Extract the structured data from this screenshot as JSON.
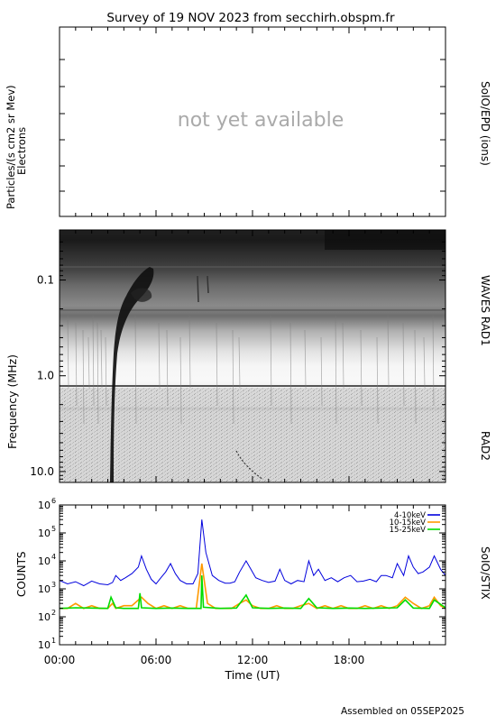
{
  "title": "Survey of 19 NOV 2023 from secchirh.obspm.fr",
  "footer": "Assembled on 05SEP2025",
  "colors": {
    "frame": "#000000",
    "placeholder": "#aaaaaa",
    "series_blue": "#0000dd",
    "series_orange": "#ff9900",
    "series_green": "#00dd00"
  },
  "chart_data": [
    {
      "type": "line",
      "panel": "SoIO/EPD (ions)",
      "ylabel": "Particles/(s cm2 sr Mev)",
      "ylabel2": "Electrons",
      "right_label": "SoIO/EPD (ions)",
      "status": "not yet available",
      "series": []
    },
    {
      "type": "heatmap",
      "panel": "WAVES RAD1 / RAD2",
      "ylabel": "Frequency (MHz)",
      "y_scale": "log",
      "y_inverted": true,
      "ylim": [
        0.03,
        13
      ],
      "yticks": [
        0.1,
        1.0,
        10.0
      ],
      "ytick_labels": [
        "0.1",
        "1.0",
        "10.0"
      ],
      "right_labels": [
        "WAVES RAD1",
        "RAD2"
      ],
      "xlim_hours": [
        0,
        24
      ],
      "features": [
        {
          "type": "type-III burst",
          "time_hours": 3.1,
          "freq_start_mhz": 0.07,
          "freq_end_mhz": 12.0
        },
        {
          "type": "type-III burst",
          "time_hours": 9.1,
          "freq_start_mhz": 0.09,
          "freq_end_mhz": 0.2
        }
      ]
    },
    {
      "type": "line",
      "panel": "SoIO/STIX",
      "ylabel": "COUNTS",
      "right_label": "SoIO/STIX",
      "y_scale": "log",
      "ylim": [
        10,
        1000000
      ],
      "ytick_labels": [
        {
          "base": "10",
          "exp": "1"
        },
        {
          "base": "10",
          "exp": "2"
        },
        {
          "base": "10",
          "exp": "3"
        },
        {
          "base": "10",
          "exp": "4"
        },
        {
          "base": "10",
          "exp": "5"
        },
        {
          "base": "10",
          "exp": "6"
        }
      ],
      "xlabel": "Time (UT)",
      "xlim": [
        0,
        24
      ],
      "xticks": [
        "00:00",
        "06:00",
        "12:00",
        "18:00"
      ],
      "legend_position": "top-right",
      "series": [
        {
          "name": "4-10keV",
          "color": "#0000dd",
          "x": [
            0,
            0.5,
            1.0,
            1.5,
            2.0,
            2.5,
            3.0,
            3.3,
            3.5,
            3.8,
            4.1,
            4.5,
            4.9,
            5.1,
            5.4,
            5.7,
            6.0,
            6.3,
            6.6,
            6.9,
            7.2,
            7.5,
            7.9,
            8.3,
            8.6,
            8.85,
            9.1,
            9.5,
            9.9,
            10.3,
            10.6,
            10.9,
            11.2,
            11.6,
            11.9,
            12.2,
            12.6,
            13.0,
            13.4,
            13.7,
            14.0,
            14.4,
            14.8,
            15.2,
            15.5,
            15.8,
            16.1,
            16.5,
            16.9,
            17.3,
            17.7,
            18.1,
            18.5,
            18.9,
            19.3,
            19.7,
            20.0,
            20.3,
            20.7,
            21.0,
            21.4,
            21.7,
            22.0,
            22.3,
            22.6,
            23.0,
            23.3,
            23.7,
            24.0
          ],
          "values": [
            2000,
            1500,
            1800,
            1300,
            1900,
            1500,
            1400,
            1700,
            3000,
            2000,
            2500,
            3500,
            6000,
            15000,
            5000,
            2200,
            1500,
            2500,
            4000,
            8000,
            3500,
            2000,
            1500,
            1500,
            3500,
            300000,
            20000,
            3000,
            2000,
            1600,
            1600,
            1800,
            4000,
            10000,
            5000,
            2500,
            2000,
            1700,
            1900,
            5000,
            2000,
            1500,
            2000,
            1800,
            10000,
            3000,
            5000,
            2000,
            2500,
            1800,
            2500,
            3000,
            1800,
            1900,
            2200,
            1800,
            3000,
            3000,
            2500,
            8000,
            3000,
            15000,
            6000,
            3500,
            4000,
            6000,
            15000,
            5000,
            3000
          ]
        },
        {
          "name": "10-15keV",
          "color": "#ff9900",
          "x": [
            0,
            0.5,
            1.0,
            1.5,
            2.0,
            2.5,
            3.0,
            3.3,
            3.5,
            4.0,
            4.5,
            4.9,
            5.1,
            5.5,
            6.0,
            6.5,
            7.0,
            7.5,
            8.0,
            8.5,
            8.85,
            9.2,
            9.7,
            10.2,
            10.7,
            11.2,
            11.6,
            12.0,
            12.5,
            13.0,
            13.5,
            14.0,
            14.5,
            15.0,
            15.5,
            16.0,
            16.5,
            17.0,
            17.5,
            18.0,
            18.5,
            19.0,
            19.5,
            20.0,
            20.5,
            21.0,
            21.5,
            22.0,
            22.5,
            23.0,
            23.3,
            23.7,
            24.0
          ],
          "values": [
            200,
            200,
            300,
            200,
            250,
            200,
            200,
            300,
            200,
            250,
            250,
            400,
            500,
            300,
            200,
            250,
            200,
            250,
            200,
            200,
            8000,
            300,
            200,
            200,
            200,
            300,
            400,
            250,
            200,
            200,
            250,
            200,
            200,
            250,
            300,
            200,
            250,
            200,
            250,
            200,
            200,
            250,
            200,
            250,
            200,
            250,
            500,
            300,
            200,
            250,
            500,
            250,
            200
          ]
        },
        {
          "name": "15-25keV",
          "color": "#00dd00",
          "x": [
            0,
            1.0,
            2.0,
            3.0,
            3.2,
            3.5,
            4.0,
            4.9,
            5.0,
            5.1,
            6.0,
            7.0,
            8.0,
            8.8,
            8.85,
            8.95,
            10.0,
            11.0,
            11.6,
            12.0,
            13.0,
            14.0,
            15.0,
            15.5,
            16.0,
            17.0,
            18.0,
            19.0,
            20.0,
            21.0,
            21.5,
            22.0,
            23.0,
            23.3,
            24.0
          ],
          "values": [
            200,
            210,
            205,
            200,
            500,
            210,
            200,
            200,
            700,
            210,
            200,
            205,
            200,
            200,
            3000,
            220,
            200,
            205,
            600,
            210,
            200,
            205,
            200,
            450,
            210,
            200,
            205,
            200,
            205,
            210,
            400,
            205,
            200,
            400,
            210
          ]
        }
      ]
    }
  ]
}
